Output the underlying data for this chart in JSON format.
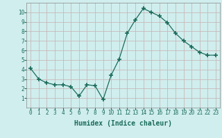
{
  "x": [
    0,
    1,
    2,
    3,
    4,
    5,
    6,
    7,
    8,
    9,
    10,
    11,
    12,
    13,
    14,
    15,
    16,
    17,
    18,
    19,
    20,
    21,
    22,
    23
  ],
  "y": [
    4.1,
    3.0,
    2.6,
    2.4,
    2.4,
    2.2,
    1.2,
    2.4,
    2.3,
    0.85,
    3.4,
    5.1,
    7.8,
    9.2,
    10.4,
    10.0,
    9.6,
    8.9,
    7.8,
    7.0,
    6.4,
    5.8,
    5.5,
    5.5
  ],
  "line_color": "#1a6b5a",
  "marker": "+",
  "marker_size": 4,
  "bg_color": "#d0eeee",
  "grid_color": "#c8b8b8",
  "xlabel": "Humidex (Indice chaleur)",
  "xlim": [
    -0.5,
    23.5
  ],
  "ylim": [
    0,
    11
  ],
  "yticks": [
    1,
    2,
    3,
    4,
    5,
    6,
    7,
    8,
    9,
    10
  ],
  "xticks": [
    0,
    1,
    2,
    3,
    4,
    5,
    6,
    7,
    8,
    9,
    10,
    11,
    12,
    13,
    14,
    15,
    16,
    17,
    18,
    19,
    20,
    21,
    22,
    23
  ],
  "tick_fontsize": 5.5,
  "label_fontsize": 7.0
}
